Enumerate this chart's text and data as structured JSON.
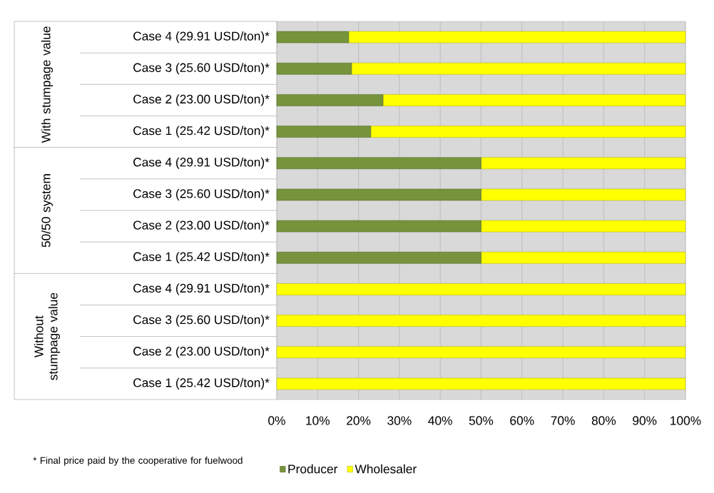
{
  "chart_data": {
    "type": "bar",
    "orientation": "horizontal",
    "stacked": true,
    "categories": [
      "Case 4 (29.91 USD/ton)*",
      "Case 3 (25.60 USD/ton)*",
      "Case 2 (23.00 USD/ton)*",
      "Case 1 (25.42 USD/ton)*",
      "Case 4 (29.91 USD/ton)*",
      "Case 3 (25.60 USD/ton)*",
      "Case 2 (23.00 USD/ton)*",
      "Case 1 (25.42 USD/ton)*",
      "Case 4 (29.91 USD/ton)*",
      "Case 3 (25.60 USD/ton)*",
      "Case 2 (23.00 USD/ton)*",
      "Case 1 (25.42 USD/ton)*"
    ],
    "series": [
      {
        "name": "Producer",
        "color": "#77933c",
        "values": [
          17.6,
          18.3,
          26,
          23,
          50,
          50,
          50,
          50,
          0,
          0,
          0,
          0
        ]
      },
      {
        "name": "Wholesaler",
        "color": "#ffff00",
        "values": [
          82.4,
          81.7,
          74,
          77,
          50,
          50,
          50,
          50,
          100,
          100,
          100,
          100
        ]
      }
    ],
    "xlim": [
      0,
      100
    ],
    "xticks": [
      {
        "value": 0,
        "label": "0%"
      },
      {
        "value": 10,
        "label": "10%"
      },
      {
        "value": 20,
        "label": "20%"
      },
      {
        "value": 30,
        "label": "30%"
      },
      {
        "value": 40,
        "label": "40%"
      },
      {
        "value": 50,
        "label": "50%"
      },
      {
        "value": 60,
        "label": "60%"
      },
      {
        "value": 70,
        "label": "70%"
      },
      {
        "value": 80,
        "label": "80%"
      },
      {
        "value": 90,
        "label": "90%"
      },
      {
        "value": 100,
        "label": "100%"
      }
    ],
    "grid": "x",
    "legend": "bottom",
    "annotations": [
      "With stumpage value",
      "50/50 system",
      "Without stumpage value",
      "* Final price paid by the cooperative for fuelwood"
    ]
  }
}
